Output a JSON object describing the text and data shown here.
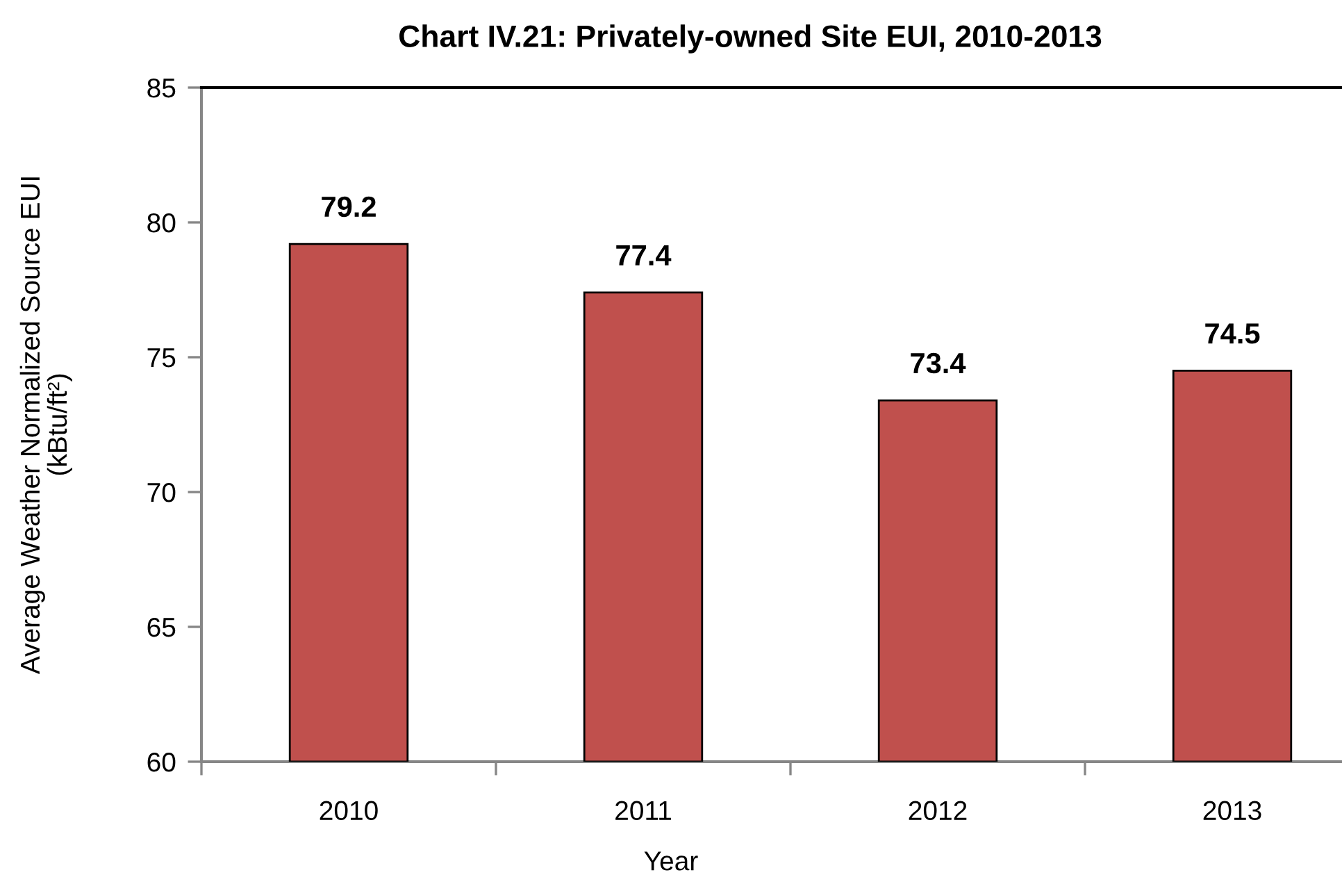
{
  "chart_data": {
    "type": "bar",
    "title": "Chart IV.21: Privately-owned Site EUI, 2010-2013",
    "xlabel": "Year",
    "ylabel": "Average Weather Normalized Source EUI\n(kBtu/ft²)",
    "categories": [
      "2010",
      "2011",
      "2012",
      "2013"
    ],
    "values": [
      79.2,
      77.4,
      73.4,
      74.5
    ],
    "color": "#c0504d",
    "ylim": [
      60,
      85
    ],
    "yticks": [
      60,
      65,
      70,
      75,
      80,
      85
    ],
    "data_labels": true,
    "grid": false
  }
}
